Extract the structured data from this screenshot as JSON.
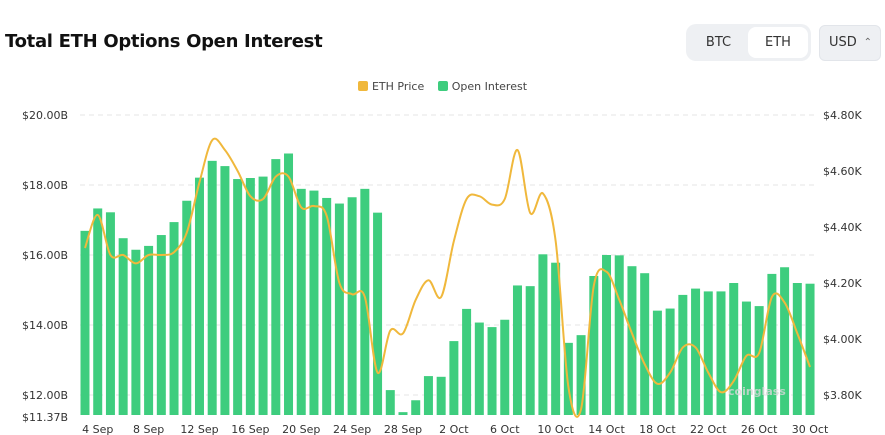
{
  "header": {
    "title": "Total ETH Options Open Interest"
  },
  "controls": {
    "asset_toggle": [
      {
        "label": "BTC",
        "selected": false
      },
      {
        "label": "ETH",
        "selected": true
      }
    ],
    "currency": {
      "value": "USD"
    }
  },
  "watermark": "coinglass",
  "chart_data": {
    "type": "bar+line",
    "title": "Total ETH Options Open Interest",
    "legend": {
      "placement": "top-center",
      "entries": [
        "ETH Price",
        "Open Interest"
      ]
    },
    "colors": {
      "ETH Price": "#F0B83C",
      "Open Interest": "#3ECD7E"
    },
    "grid": true,
    "x_tick_labels": [
      "4 Sep",
      "8 Sep",
      "12 Sep",
      "16 Sep",
      "20 Sep",
      "24 Sep",
      "28 Sep",
      "2 Oct",
      "6 Oct",
      "10 Oct",
      "14 Oct",
      "18 Oct",
      "22 Oct",
      "26 Oct",
      "30 Oct"
    ],
    "left_axis": {
      "ylim": [
        11.37,
        20
      ],
      "ticks": [
        11.37,
        12,
        14,
        16,
        18,
        20
      ],
      "tick_labels": [
        "$11.37B",
        "$12.00B",
        "$14.00B",
        "$16.00B",
        "$18.00B",
        "$20.00B"
      ]
    },
    "right_axis": {
      "ylim": [
        3.8,
        4.8
      ],
      "ticks": [
        3.8,
        4.0,
        4.2,
        4.4,
        4.6,
        4.8
      ],
      "tick_labels": [
        "$3.80K",
        "$4.00K",
        "$4.20K",
        "$4.40K",
        "$4.60K",
        "$4.80K"
      ]
    },
    "x": [
      "3 Sep",
      "4 Sep",
      "5 Sep",
      "6 Sep",
      "7 Sep",
      "8 Sep",
      "9 Sep",
      "10 Sep",
      "11 Sep",
      "12 Sep",
      "13 Sep",
      "14 Sep",
      "15 Sep",
      "16 Sep",
      "17 Sep",
      "18 Sep",
      "19 Sep",
      "20 Sep",
      "21 Sep",
      "22 Sep",
      "23 Sep",
      "24 Sep",
      "25 Sep",
      "26 Sep",
      "27 Sep",
      "28 Sep",
      "29 Sep",
      "30 Sep",
      "1 Oct",
      "2 Oct",
      "3 Oct",
      "4 Oct",
      "5 Oct",
      "6 Oct",
      "7 Oct",
      "8 Oct",
      "9 Oct",
      "10 Oct",
      "11 Oct",
      "12 Oct",
      "13 Oct",
      "14 Oct",
      "15 Oct",
      "16 Oct",
      "17 Oct",
      "18 Oct",
      "19 Oct",
      "20 Oct",
      "21 Oct",
      "22 Oct",
      "23 Oct",
      "24 Oct",
      "25 Oct",
      "26 Oct",
      "27 Oct",
      "28 Oct",
      "29 Oct",
      "30 Oct"
    ],
    "series": [
      {
        "name": "Open Interest",
        "axis": "left",
        "unit": "B USD",
        "values": [
          16.69,
          17.33,
          17.22,
          16.48,
          16.15,
          16.26,
          16.57,
          16.94,
          17.55,
          18.21,
          18.69,
          18.54,
          18.17,
          18.2,
          18.24,
          18.74,
          18.9,
          17.89,
          17.84,
          17.63,
          17.47,
          17.65,
          17.89,
          17.21,
          12.14,
          11.51,
          11.85,
          12.54,
          12.52,
          13.54,
          14.46,
          14.07,
          13.94,
          14.15,
          15.13,
          15.11,
          16.02,
          15.78,
          13.49,
          13.71,
          15.4,
          16.0,
          15.99,
          15.68,
          15.48,
          14.41,
          14.47,
          14.86,
          15.04,
          14.96,
          14.96,
          15.2,
          14.67,
          14.54,
          15.46,
          15.65,
          15.2,
          15.18
        ]
      },
      {
        "name": "ETH Price",
        "axis": "right",
        "unit": "K USD",
        "values": [
          4.325,
          4.443,
          4.3,
          4.3,
          4.27,
          4.3,
          4.3,
          4.31,
          4.38,
          4.56,
          4.71,
          4.675,
          4.6,
          4.51,
          4.5,
          4.58,
          4.58,
          4.47,
          4.475,
          4.44,
          4.2,
          4.16,
          4.15,
          3.88,
          4.03,
          4.02,
          4.14,
          4.21,
          4.15,
          4.35,
          4.5,
          4.51,
          4.48,
          4.5,
          4.675,
          4.45,
          4.52,
          4.35,
          3.83,
          3.75,
          4.19,
          4.24,
          4.14,
          4.02,
          3.91,
          3.84,
          3.88,
          3.97,
          3.97,
          3.88,
          3.81,
          3.85,
          3.94,
          3.95,
          4.15,
          4.13,
          4.02,
          3.9
        ]
      }
    ]
  }
}
